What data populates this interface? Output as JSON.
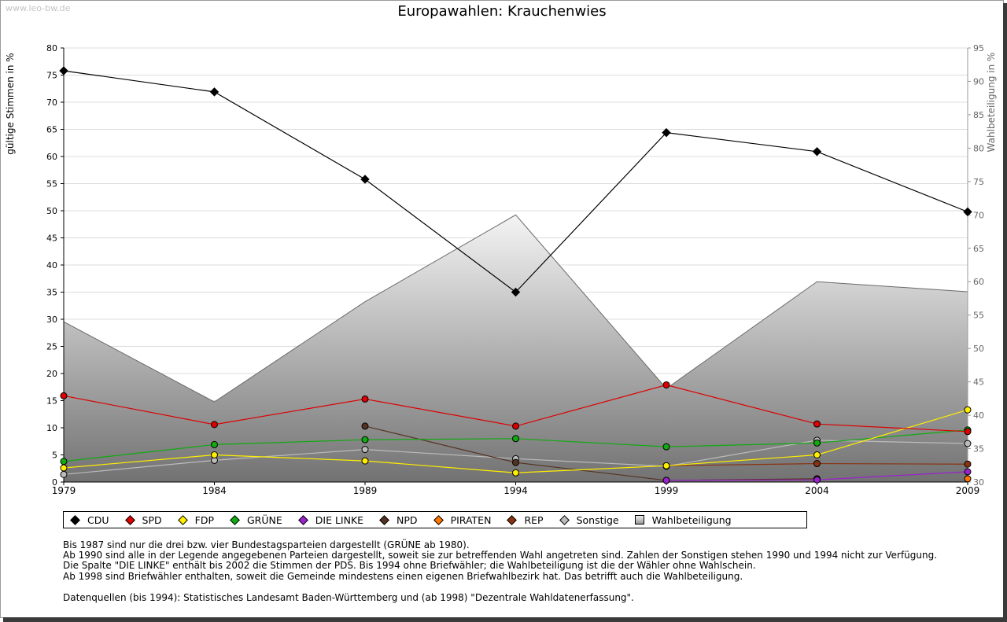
{
  "watermark": "www.leo-bw.de",
  "title": "Europawahlen: Krauchenwies",
  "notes": [
    "Bis 1987 sind nur die drei bzw. vier Bundestagsparteien dargestellt (GRÜNE ab 1980).",
    "Ab 1990 sind alle in der Legende angegebenen Parteien dargestellt, soweit sie zur betreffenden Wahl angetreten sind. Zahlen der Sonstigen stehen 1990 und 1994 nicht zur Verfügung.",
    "Die Spalte \"DIE LINKE\" enthält bis 2002 die Stimmen der PDS. Bis 1994 ohne Briefwähler; die Wahlbeteiligung ist die der Wähler ohne Wahlschein.",
    "Ab 1998 sind Briefwähler enthalten, soweit die Gemeinde mindestens einen eigenen Briefwahlbezirk hat. Das betrifft auch die Wahlbeteiligung."
  ],
  "source": "Datenquellen (bis 1994): Statistisches Landesamt Baden-Württemberg und (ab 1998) \"Dezentrale Wahldatenerfassung\".",
  "chart_data": {
    "type": "line",
    "title": "Europawahlen: Krauchenwies",
    "ylabel": "gültige Stimmen in %",
    "y2label": "Wahlbeteiligung in %",
    "x": [
      1979,
      1984,
      1989,
      1994,
      1999,
      2004,
      2009
    ],
    "ylim": [
      0,
      80
    ],
    "y2lim": [
      30,
      95
    ],
    "yticks": [
      0,
      5,
      10,
      15,
      20,
      25,
      30,
      35,
      40,
      45,
      50,
      55,
      60,
      65,
      70,
      75,
      80
    ],
    "y2ticks": [
      30,
      35,
      40,
      45,
      50,
      55,
      60,
      65,
      70,
      75,
      80,
      85,
      90,
      95
    ],
    "grid": true,
    "legend_position": "bottom",
    "series": [
      {
        "name": "CDU",
        "color": "#000000",
        "values": [
          75.8,
          71.9,
          55.8,
          35.0,
          64.4,
          60.9,
          49.8
        ]
      },
      {
        "name": "SPD",
        "color": "#dd0000",
        "values": [
          15.9,
          10.6,
          15.3,
          10.3,
          17.9,
          10.7,
          9.3
        ]
      },
      {
        "name": "FDP",
        "color": "#ffee00",
        "values": [
          2.6,
          5.0,
          3.9,
          1.7,
          3.0,
          5.0,
          13.3
        ]
      },
      {
        "name": "GRÜNE",
        "color": "#11aa11",
        "values": [
          3.8,
          6.9,
          7.8,
          8.0,
          6.5,
          7.2,
          9.6
        ]
      },
      {
        "name": "DIE LINKE",
        "color": "#9922cc",
        "values": [
          null,
          null,
          null,
          null,
          0.3,
          0.4,
          1.9
        ]
      },
      {
        "name": "NPD",
        "color": "#553322",
        "values": [
          null,
          null,
          10.3,
          3.6,
          0.3,
          0.6,
          null
        ]
      },
      {
        "name": "PIRATEN",
        "color": "#ff7700",
        "values": [
          null,
          null,
          null,
          null,
          null,
          null,
          0.6
        ]
      },
      {
        "name": "REP",
        "color": "#883311",
        "values": [
          null,
          null,
          null,
          null,
          3.0,
          3.4,
          3.3
        ]
      },
      {
        "name": "Sonstige",
        "color": "#bbbbbb",
        "values": [
          1.4,
          4.0,
          6.0,
          4.3,
          2.9,
          7.7,
          7.1
        ]
      }
    ],
    "turnout": {
      "name": "Wahlbeteiligung",
      "values": [
        54.0,
        42.0,
        57.0,
        70.0,
        44.0,
        60.0,
        58.5
      ]
    }
  }
}
